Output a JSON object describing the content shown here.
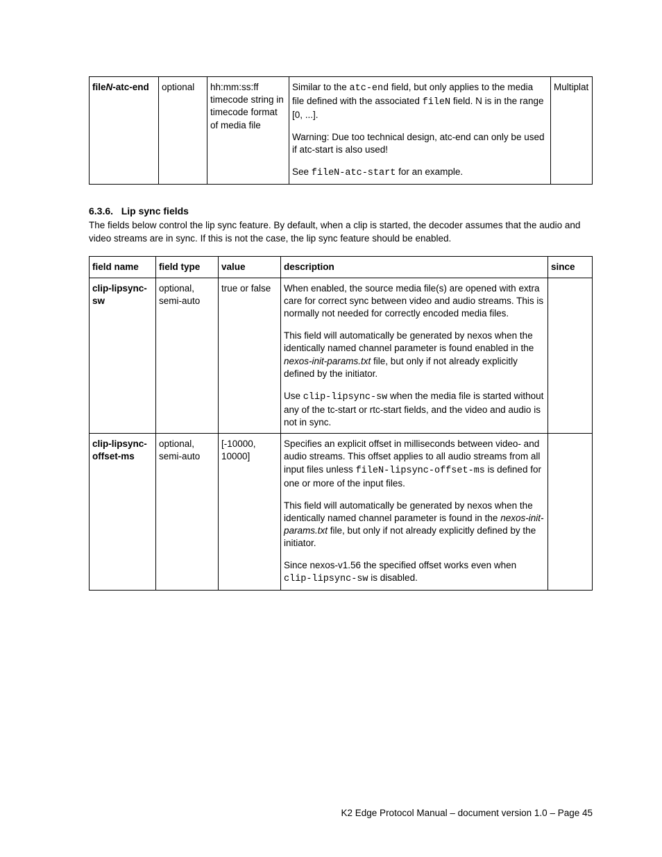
{
  "table1": {
    "row": {
      "field_name_pre": "file",
      "field_name_mid_italic": "N",
      "field_name_post": "-atc-end",
      "field_type": "optional",
      "value": "hh:mm:ss:ff timecode string in timecode format of media file",
      "desc_p1_a": "Similar to the ",
      "desc_p1_code1": "atc-end",
      "desc_p1_b": " field, but only applies to the media file defined with the associated ",
      "desc_p1_code2": "fileN",
      "desc_p1_c": " field. N is in the range [0, ...].",
      "desc_p2": "Warning: Due too technical design, atc-end can only be used if atc-start is also used!",
      "desc_p3_a": "See ",
      "desc_p3_code": "fileN-atc-start",
      "desc_p3_b": " for an example.",
      "since": "Multiplat"
    }
  },
  "section": {
    "number": "6.3.6.",
    "title": "Lip sync fields",
    "intro": "The fields below control the lip sync feature. By default, when a clip is started, the decoder assumes that the audio and video streams are in sync. If this is not the case, the lip sync feature should be enabled."
  },
  "table2": {
    "headers": {
      "c1": "field name",
      "c2": "field type",
      "c3": "value",
      "c4": "description",
      "c5": "since"
    },
    "rows": [
      {
        "field_name": "clip-lipsync-sw",
        "field_type": "optional, semi-auto",
        "value": "true or false",
        "desc_p1": "When enabled, the source media file(s) are opened with extra care for correct sync between video and audio streams. This is normally not needed for correctly encoded media files.",
        "desc_p2_a": "This field will automatically be generated by nexos when the identically named channel parameter is found enabled in the ",
        "desc_p2_ital": "nexos-init-params.txt",
        "desc_p2_b": " file, but only if not already explicitly defined by the initiator.",
        "desc_p3_a": "Use ",
        "desc_p3_code": "clip-lipsync-sw",
        "desc_p3_b": " when the media file is started without any of the tc-start or rtc-start fields, and the video and audio is not in sync.",
        "since": ""
      },
      {
        "field_name": "clip-lipsync-offset-ms",
        "field_type": "optional, semi-auto",
        "value": "[-10000, 10000]",
        "desc_p1_a": "Specifies an explicit offset in milliseconds between video- and audio streams. This offset applies to all audio streams from all input files unless ",
        "desc_p1_code": "fileN-lipsync-offset-ms",
        "desc_p1_b": " is defined for one or more of the input files.",
        "desc_p2_a": "This field will automatically be generated by nexos when the identically named channel parameter is found in the ",
        "desc_p2_ital": "nexos-init-params.txt",
        "desc_p2_b": " file, but only if not already explicitly defined by the initiator.",
        "desc_p3_a": "Since nexos-v1.56 the specified offset works even when ",
        "desc_p3_code": "clip-lipsync-sw",
        "desc_p3_b": " is disabled.",
        "since": ""
      }
    ]
  },
  "footer": "K2 Edge Protocol Manual – document version 1.0 – Page 45"
}
